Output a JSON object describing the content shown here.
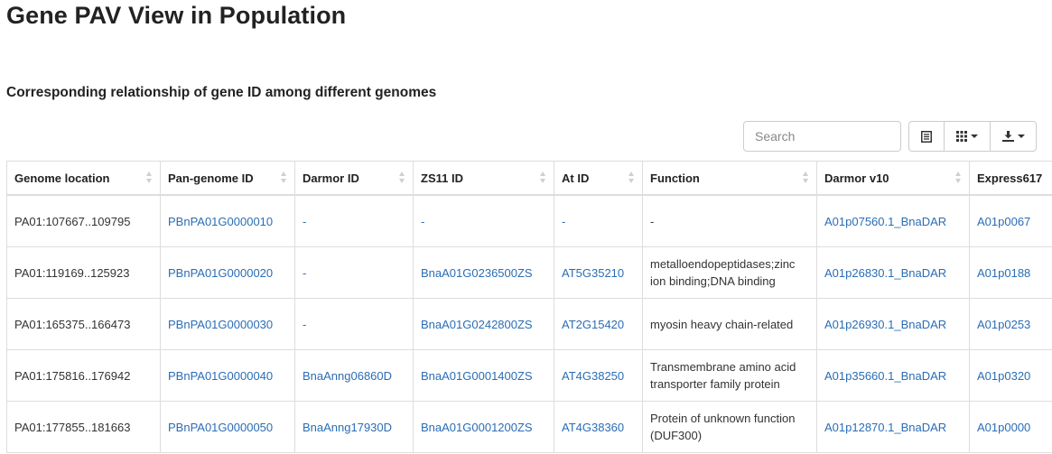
{
  "page_title": "Gene PAV View in Population",
  "section_title": "Corresponding relationship of gene ID among different genomes",
  "toolbar": {
    "search_placeholder": "Search",
    "buttons": [
      "toggle-view-icon",
      "columns-icon",
      "export-icon"
    ]
  },
  "table": {
    "columns": [
      "Genome location",
      "Pan-genome ID",
      "Darmor ID",
      "ZS11 ID",
      "At ID",
      "Function",
      "Darmor v10",
      "Express617"
    ],
    "rows": [
      {
        "location": "PA01:107667..109795",
        "pan_id": "PBnPA01G0000010",
        "darmor_id": "-",
        "zs11_id": "-",
        "at_id": "-",
        "function": "-",
        "darmor_v10": "A01p07560.1_BnaDAR",
        "express": "A01p0067"
      },
      {
        "location": "PA01:119169..125923",
        "pan_id": "PBnPA01G0000020",
        "darmor_id": "-",
        "zs11_id": "BnaA01G0236500ZS",
        "at_id": "AT5G35210",
        "function": "metalloendopeptidases;zinc ion binding;DNA binding",
        "darmor_v10": "A01p26830.1_BnaDAR",
        "express": "A01p0188"
      },
      {
        "location": "PA01:165375..166473",
        "pan_id": "PBnPA01G0000030",
        "darmor_id": "-",
        "zs11_id": "BnaA01G0242800ZS",
        "at_id": "AT2G15420",
        "function": "myosin heavy chain-related",
        "darmor_v10": "A01p26930.1_BnaDAR",
        "express": "A01p0253"
      },
      {
        "location": "PA01:175816..176942",
        "pan_id": "PBnPA01G0000040",
        "darmor_id": "BnaAnng06860D",
        "zs11_id": "BnaA01G0001400ZS",
        "at_id": "AT4G38250",
        "function": "Transmembrane amino acid transporter family protein",
        "darmor_v10": "A01p35660.1_BnaDAR",
        "express": "A01p0320"
      },
      {
        "location": "PA01:177855..181663",
        "pan_id": "PBnPA01G0000050",
        "darmor_id": "BnaAnng17930D",
        "zs11_id": "BnaA01G0001200ZS",
        "at_id": "AT4G38360",
        "function": "Protein of unknown function (DUF300)",
        "darmor_v10": "A01p12870.1_BnaDAR",
        "express": "A01p0000"
      }
    ]
  },
  "colors": {
    "link": "#2a6db5",
    "border": "#dddddd",
    "text": "#333333"
  }
}
